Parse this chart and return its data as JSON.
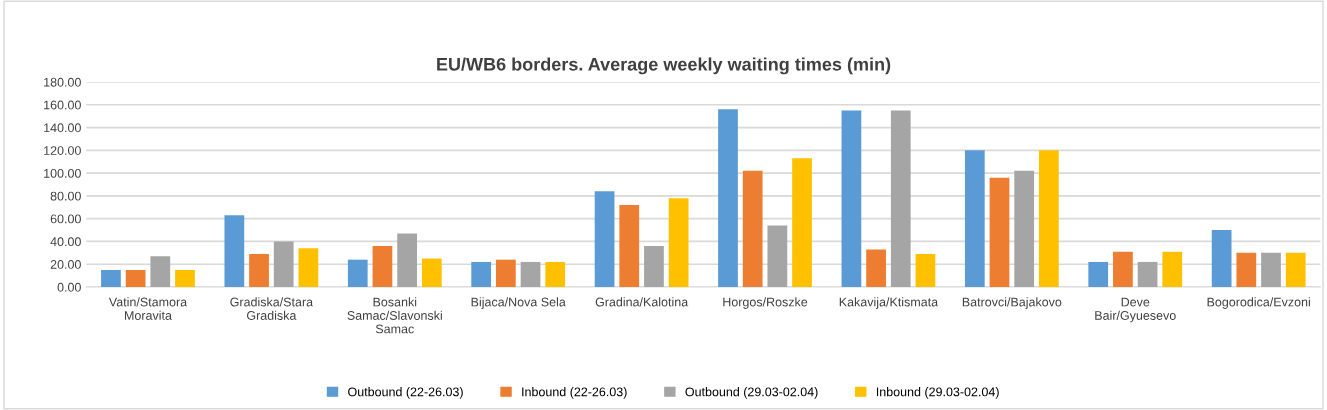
{
  "chart_data": {
    "type": "bar",
    "title": "EU/WB6 borders. Average weekly waiting times (min)",
    "categories": [
      "Vatin/Stamora Moravita",
      "Gradiska/Stara Gradiska",
      "Bosanki Samac/Slavonski Samac",
      "Bijaca/Nova Sela",
      "Gradina/Kalotina",
      "Horgos/Roszke",
      "Kakavija/Ktismata",
      "Batrovci/Bajakovo",
      "Deve Bair/Gyuesevo",
      "Bogorodica/Evzoni"
    ],
    "series": [
      {
        "name": "Outbound (22-26.03)",
        "color": "#5b9bd5",
        "values": [
          15,
          63,
          24,
          22,
          84,
          156,
          155,
          120,
          22,
          50
        ]
      },
      {
        "name": "Inbound (22-26.03)",
        "color": "#ed7d31",
        "values": [
          15,
          29,
          36,
          24,
          72,
          102,
          33,
          96,
          31,
          30
        ]
      },
      {
        "name": "Outbound (29.03-02.04)",
        "color": "#a5a5a5",
        "values": [
          27,
          40,
          47,
          22,
          36,
          54,
          155,
          102,
          22,
          30
        ]
      },
      {
        "name": "Inbound (29.03-02.04)",
        "color": "#ffc000",
        "values": [
          15,
          34,
          25,
          22,
          78,
          113,
          29,
          120,
          31,
          30
        ]
      }
    ],
    "ylim": [
      0,
      180
    ],
    "yticks": [
      {
        "value": 0,
        "label": "0.00"
      },
      {
        "value": 20,
        "label": "20.00"
      },
      {
        "value": 40,
        "label": "40.00"
      },
      {
        "value": 60,
        "label": "60.00"
      },
      {
        "value": 80,
        "label": "80.00"
      },
      {
        "value": 100,
        "label": "100.00"
      },
      {
        "value": 120,
        "label": "120.00"
      },
      {
        "value": 140,
        "label": "140.00"
      },
      {
        "value": 160,
        "label": "160.00"
      },
      {
        "value": 180,
        "label": "180.00"
      }
    ],
    "grid": "y",
    "legend": "bottom"
  }
}
